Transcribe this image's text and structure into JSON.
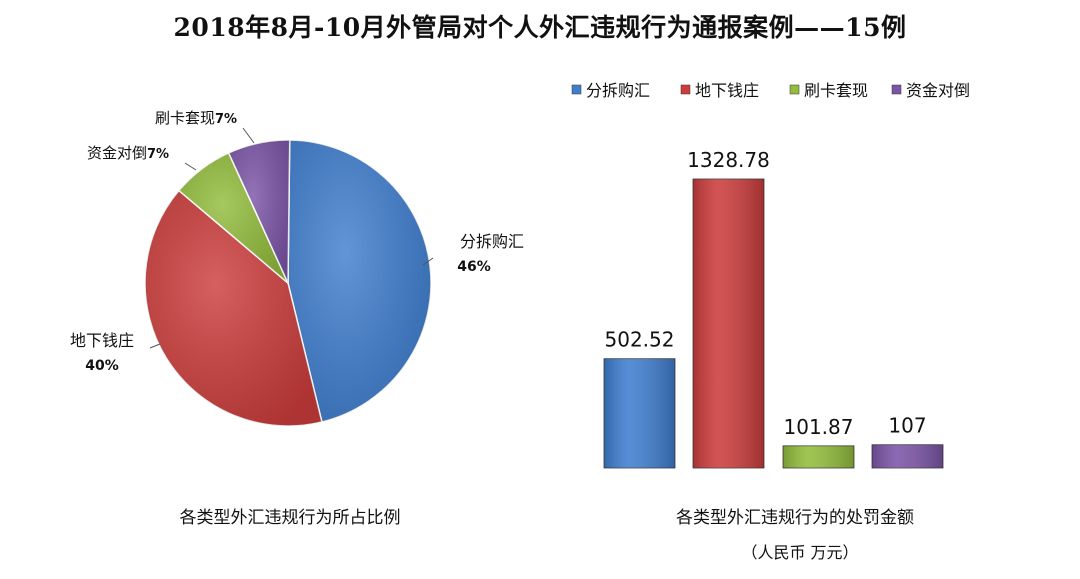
{
  "title": "2018年8月-10月外管局对个人外汇违规行为通报案例——15例",
  "chart_data": [
    {
      "type": "pie",
      "title": "各类型外汇违规行为所占比例",
      "slices": [
        {
          "name": "分拆购汇",
          "percent": 46,
          "label": "46%",
          "color": "#3f7ecf"
        },
        {
          "name": "地下钱庄",
          "percent": 40,
          "label": "40%",
          "color": "#cc3d3c"
        },
        {
          "name": "资金对倒",
          "percent": 7,
          "label": "7%",
          "color": "#93bd3c"
        },
        {
          "name": "刷卡套现",
          "percent": 7,
          "label": "7%",
          "color": "#7c55a8"
        }
      ]
    },
    {
      "type": "bar",
      "title": "各类型外汇违规行为的处罚金额",
      "subtitle": "（人民币 万元）",
      "legend_position": "top",
      "categories": [
        "分拆购汇",
        "地下钱庄",
        "刷卡套现",
        "资金对倒"
      ],
      "values": [
        502.52,
        1328.78,
        101.87,
        107
      ],
      "value_labels": [
        "502.52",
        "1328.78",
        "101.87",
        "107"
      ],
      "colors": [
        "#3f7ecf",
        "#cc3d3c",
        "#93bd3c",
        "#7c55a8"
      ],
      "ylim": [
        0,
        1500
      ]
    }
  ]
}
